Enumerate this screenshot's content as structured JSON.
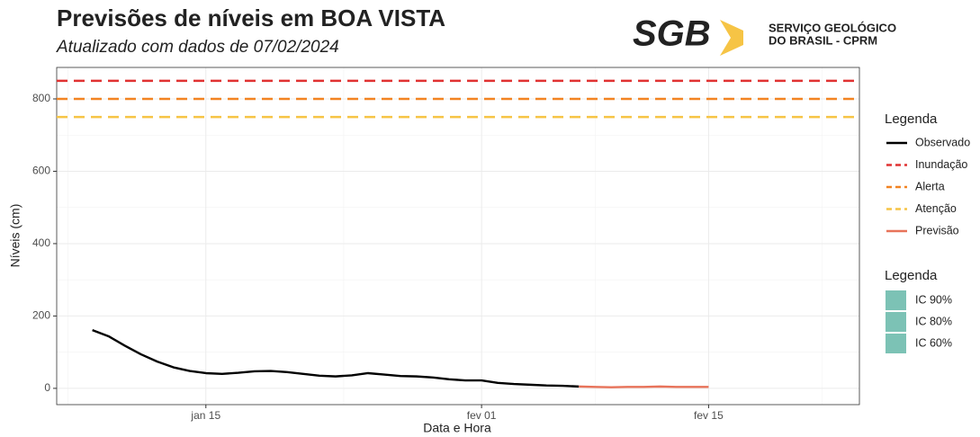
{
  "chart_data": {
    "type": "line",
    "title": "Previsões de níveis em BOA VISTA",
    "subtitle": "Atualizado com dados de 07/02/2024",
    "x_label": "Data e Hora",
    "y_label": "Níveis (cm)",
    "x": [
      8,
      9,
      10,
      11,
      12,
      13,
      14,
      15,
      16,
      17,
      18,
      19,
      20,
      21,
      22,
      23,
      24,
      25,
      26,
      27,
      28,
      29,
      30,
      31,
      32,
      33,
      34,
      35,
      36,
      37,
      38,
      39,
      40,
      41,
      42,
      43,
      44,
      45,
      46
    ],
    "series": [
      {
        "name": "Observado",
        "color": "#000000",
        "values": [
          161,
          144,
          118,
          94,
          74,
          58,
          48,
          42,
          40,
          43,
          47,
          48,
          45,
          40,
          35,
          33,
          36,
          42,
          38,
          34,
          33,
          30,
          25,
          22,
          22,
          15,
          12,
          10,
          8,
          7,
          5,
          null,
          null,
          null,
          null,
          null,
          null,
          null,
          null
        ]
      },
      {
        "name": "Previsão",
        "color": "#e8735a",
        "values": [
          null,
          null,
          null,
          null,
          null,
          null,
          null,
          null,
          null,
          null,
          null,
          null,
          null,
          null,
          null,
          null,
          null,
          null,
          null,
          null,
          null,
          null,
          null,
          null,
          null,
          null,
          null,
          null,
          null,
          null,
          5,
          4,
          3,
          4,
          4,
          5,
          4,
          4,
          4
        ]
      }
    ],
    "reference_lines": [
      {
        "name": "Inundação",
        "value": 850,
        "color": "#e03232"
      },
      {
        "name": "Alerta",
        "value": 800,
        "color": "#f28322"
      },
      {
        "name": "Atenção",
        "value": 750,
        "color": "#f6c445"
      }
    ],
    "legend_title": "Legenda",
    "intervals": {
      "title": "Legenda",
      "items": [
        {
          "name": "IC 90%",
          "color": "#7cc2b5"
        },
        {
          "name": "IC 80%",
          "color": "#7cc2b5"
        },
        {
          "name": "IC 60%",
          "color": "#7cc2b5"
        }
      ]
    },
    "xlim": [
      5.8,
      55.3
    ],
    "xticks": [
      {
        "value": 15,
        "label": "jan 15"
      },
      {
        "value": 32,
        "label": "fev 01"
      },
      {
        "value": 46,
        "label": "fev 15"
      }
    ],
    "ylim": [
      -45,
      887
    ],
    "yticks": [
      0,
      200,
      400,
      600,
      800
    ],
    "grid": true
  },
  "logo": {
    "mark": "SGB",
    "lines": [
      "SERVIÇO GEOLÓGICO",
      "DO BRASIL - CPRM"
    ]
  }
}
